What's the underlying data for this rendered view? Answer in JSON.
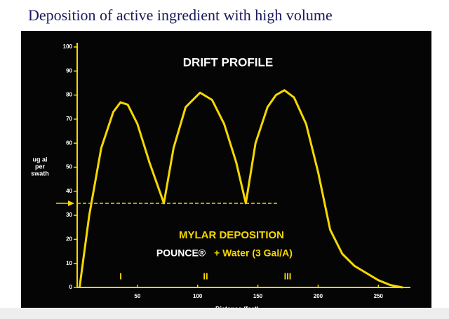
{
  "chart_data": {
    "type": "line",
    "title": "Deposition of active ingredient with high volume",
    "chart_title": "DRIFT PROFILE",
    "annotations": [
      "MYLAR DEPOSITION",
      "POUNCE®",
      "+ Water (3 Gal/A)"
    ],
    "swath_labels": [
      "I",
      "II",
      "III"
    ],
    "ylabel": [
      "ug ai",
      "per",
      "swath"
    ],
    "xlabel": "Distance (feet)",
    "x": [
      2,
      10,
      20,
      30,
      36,
      42,
      50,
      60,
      72,
      80,
      90,
      102,
      112,
      122,
      132,
      140,
      148,
      158,
      165,
      172,
      180,
      190,
      200,
      210,
      220,
      230,
      240,
      250,
      260,
      270
    ],
    "values": [
      0,
      30,
      58,
      73,
      77,
      76,
      68,
      52,
      35,
      58,
      75,
      81,
      78,
      68,
      52,
      35,
      60,
      75,
      80,
      82,
      79,
      68,
      48,
      24,
      14,
      9,
      6,
      3,
      1,
      0
    ],
    "color": "#f5d800",
    "reference_y": 35,
    "xlim": [
      0,
      290
    ],
    "ylim": [
      0,
      100
    ],
    "xticks": [
      50,
      100,
      150,
      200,
      250
    ],
    "yticks": [
      0,
      10,
      20,
      30,
      40,
      50,
      60,
      70,
      80,
      90,
      100
    ]
  }
}
